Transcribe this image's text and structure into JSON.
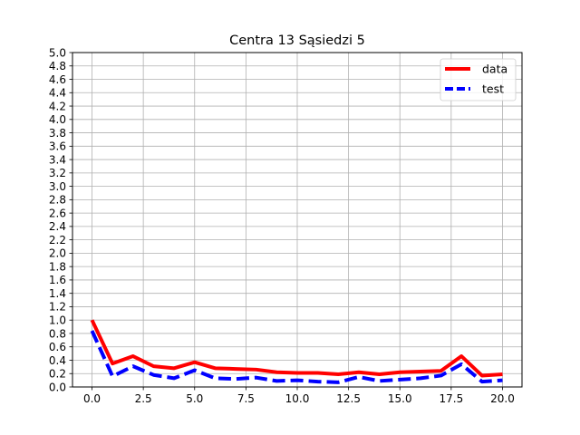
{
  "chart_data": {
    "type": "line",
    "title": "Centra 13 Sąsiedzi 5",
    "xlabel": "",
    "ylabel": "",
    "xlim": [
      -0.95,
      20.95
    ],
    "ylim": [
      0.0,
      5.0
    ],
    "x_ticks": [
      "0.0",
      "2.5",
      "5.0",
      "7.5",
      "10.0",
      "12.5",
      "15.0",
      "17.5",
      "20.0"
    ],
    "x_tick_values": [
      0,
      2.5,
      5,
      7.5,
      10,
      12.5,
      15,
      17.5,
      20
    ],
    "y_ticks": [
      "0.0",
      "0.2",
      "0.4",
      "0.6",
      "0.8",
      "1.0",
      "1.2",
      "1.4",
      "1.6",
      "1.8",
      "2.0",
      "2.2",
      "2.4",
      "2.6",
      "2.8",
      "3.0",
      "3.2",
      "3.4",
      "3.6",
      "3.8",
      "4.0",
      "4.2",
      "4.4",
      "4.6",
      "4.8",
      "5.0"
    ],
    "grid": true,
    "legend_position": "top-right",
    "x": [
      0,
      1,
      2,
      3,
      4,
      5,
      6,
      7,
      8,
      9,
      10,
      11,
      12,
      13,
      14,
      15,
      16,
      17,
      18,
      19,
      20
    ],
    "series": [
      {
        "name": "data",
        "color": "#ff0000",
        "style": "solid",
        "values": [
          1.0,
          0.35,
          0.46,
          0.31,
          0.28,
          0.37,
          0.28,
          0.27,
          0.26,
          0.22,
          0.21,
          0.21,
          0.19,
          0.22,
          0.19,
          0.22,
          0.23,
          0.24,
          0.46,
          0.17,
          0.19
        ]
      },
      {
        "name": "test",
        "color": "#0000ff",
        "style": "dashed",
        "values": [
          0.84,
          0.16,
          0.31,
          0.18,
          0.13,
          0.25,
          0.13,
          0.12,
          0.14,
          0.09,
          0.1,
          0.08,
          0.07,
          0.15,
          0.09,
          0.11,
          0.13,
          0.17,
          0.34,
          0.08,
          0.1
        ]
      }
    ]
  }
}
